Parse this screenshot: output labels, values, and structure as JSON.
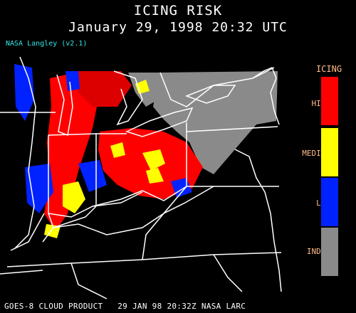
{
  "title": "ICING RISK",
  "subtitle": "January 29, 1998 20:32 UTC",
  "version": "NASA Langley (v2.1)",
  "footer": "GOES-8 CLOUD PRODUCT   29 JAN 98 20:32Z NASA LARC",
  "legend": {
    "title": "ICING",
    "label_color": "#ffbb88",
    "items": [
      {
        "label": "HIGH",
        "color": "#ff0000"
      },
      {
        "label": "MEDIUM",
        "color": "#ffff00"
      },
      {
        "label": "LOW",
        "color": "#0022ff"
      },
      {
        "label": "INDET",
        "color": "#8a8a8a"
      }
    ]
  }
}
